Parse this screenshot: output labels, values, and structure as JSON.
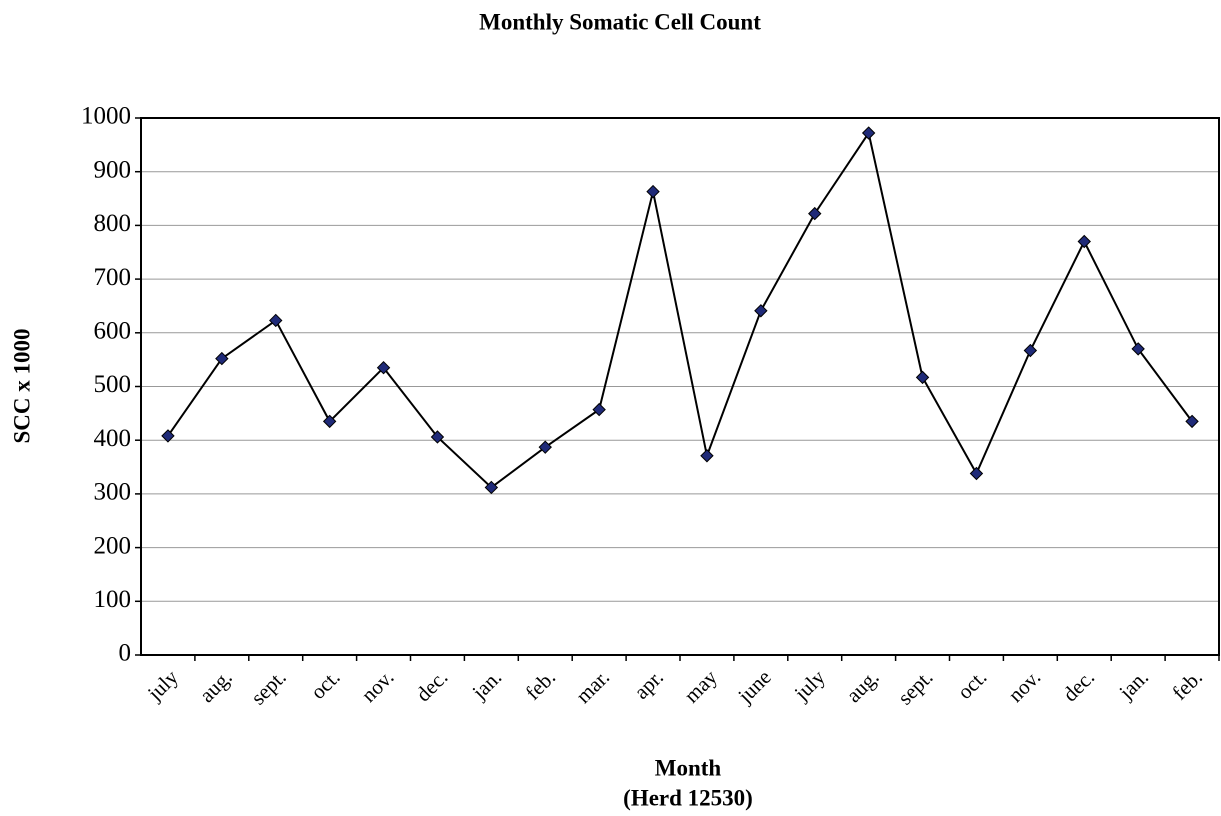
{
  "chart_data": {
    "type": "line",
    "title": "Monthly Somatic Cell Count",
    "xlabel": "Month",
    "xlabel_sub": "(Herd 12530)",
    "ylabel": "SCC x 1000",
    "categories": [
      "july",
      "aug.",
      "sept.",
      "oct.",
      "nov.",
      "dec.",
      "jan.",
      "feb.",
      "mar.",
      "apr.",
      "may",
      "june",
      "july",
      "aug.",
      "sept.",
      "oct.",
      "nov.",
      "dec.",
      "jan.",
      "feb."
    ],
    "values": [
      408,
      552,
      623,
      435,
      535,
      406,
      312,
      387,
      457,
      863,
      371,
      641,
      822,
      972,
      517,
      338,
      567,
      770,
      570,
      435
    ],
    "color": "#000000",
    "marker_color": "#1f2a78",
    "ylim": [
      0,
      1000
    ],
    "yticks": [
      0,
      100,
      200,
      300,
      400,
      500,
      600,
      700,
      800,
      900,
      1000
    ],
    "grid": true
  }
}
